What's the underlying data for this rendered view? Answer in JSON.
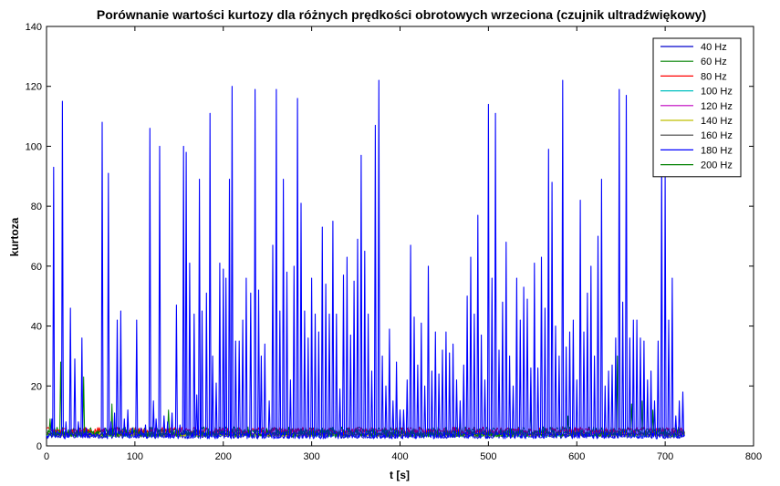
{
  "chart_data": {
    "type": "line",
    "title": "Porównanie wartości kurtozy dla różnych prędkości obrotowych wrzeciona (czujnik ultradźwiękowy)",
    "xlabel": "t [s]",
    "ylabel": "kurtoza",
    "xlim": [
      0,
      800
    ],
    "ylim": [
      0,
      140
    ],
    "xticks": [
      0,
      100,
      200,
      300,
      400,
      500,
      600,
      700,
      800
    ],
    "yticks": [
      0,
      20,
      40,
      60,
      80,
      100,
      120,
      140
    ],
    "legend_position": "top-right",
    "grid": false,
    "x_range_data": [
      0,
      722
    ],
    "series": [
      {
        "name": "40 Hz",
        "color": "#0000cc",
        "baseline": 3.3,
        "noise": 0.8
      },
      {
        "name": "60 Hz",
        "color": "#008000",
        "baseline": 4.8,
        "noise": 1.6
      },
      {
        "name": "80 Hz",
        "color": "#ff0000",
        "baseline": 5.0,
        "noise": 1.2
      },
      {
        "name": "100 Hz",
        "color": "#00bfbf",
        "baseline": 3.6,
        "noise": 0.5
      },
      {
        "name": "120 Hz",
        "color": "#bf00bf",
        "baseline": 3.8,
        "noise": 0.5
      },
      {
        "name": "140 Hz",
        "color": "#bfbf00",
        "baseline": 3.7,
        "noise": 0.5
      },
      {
        "name": "160 Hz",
        "color": "#404040",
        "baseline": 3.9,
        "noise": 0.6
      },
      {
        "name": "180 Hz",
        "color": "#0000ff",
        "baseline": 3.4,
        "noise": 1.0,
        "peaks": [
          [
            6,
            9
          ],
          [
            8,
            93
          ],
          [
            12,
            5
          ],
          [
            18,
            115
          ],
          [
            22,
            8
          ],
          [
            27,
            46
          ],
          [
            32,
            29
          ],
          [
            36,
            8
          ],
          [
            40,
            36
          ],
          [
            45,
            6
          ],
          [
            63,
            108
          ],
          [
            66,
            6
          ],
          [
            70,
            91
          ],
          [
            73,
            8
          ],
          [
            77,
            11
          ],
          [
            80,
            42
          ],
          [
            84,
            45
          ],
          [
            88,
            9
          ],
          [
            92,
            12
          ],
          [
            97,
            6
          ],
          [
            102,
            42
          ],
          [
            107,
            6
          ],
          [
            112,
            7
          ],
          [
            117,
            106
          ],
          [
            121,
            15
          ],
          [
            124,
            9
          ],
          [
            128,
            100
          ],
          [
            133,
            10
          ],
          [
            137,
            8
          ],
          [
            142,
            11
          ],
          [
            147,
            47
          ],
          [
            151,
            7
          ],
          [
            155,
            100
          ],
          [
            158,
            98
          ],
          [
            162,
            61
          ],
          [
            167,
            44
          ],
          [
            170,
            17
          ],
          [
            173,
            89
          ],
          [
            176,
            45
          ],
          [
            181,
            51
          ],
          [
            185,
            111
          ],
          [
            188,
            30
          ],
          [
            192,
            21
          ],
          [
            196,
            61
          ],
          [
            200,
            59
          ],
          [
            203,
            56
          ],
          [
            207,
            89
          ],
          [
            210,
            120
          ],
          [
            214,
            35
          ],
          [
            218,
            35
          ],
          [
            222,
            42
          ],
          [
            226,
            56
          ],
          [
            231,
            51
          ],
          [
            236,
            119
          ],
          [
            240,
            52
          ],
          [
            243,
            30
          ],
          [
            247,
            34
          ],
          [
            252,
            15
          ],
          [
            256,
            67
          ],
          [
            260,
            119
          ],
          [
            264,
            45
          ],
          [
            268,
            89
          ],
          [
            272,
            58
          ],
          [
            276,
            22
          ],
          [
            280,
            60
          ],
          [
            284,
            116
          ],
          [
            288,
            81
          ],
          [
            292,
            45
          ],
          [
            296,
            36
          ],
          [
            300,
            56
          ],
          [
            304,
            44
          ],
          [
            308,
            38
          ],
          [
            312,
            73
          ],
          [
            316,
            54
          ],
          [
            320,
            44
          ],
          [
            324,
            75
          ],
          [
            328,
            44
          ],
          [
            332,
            19
          ],
          [
            336,
            57
          ],
          [
            340,
            63
          ],
          [
            344,
            37
          ],
          [
            348,
            55
          ],
          [
            352,
            69
          ],
          [
            356,
            97
          ],
          [
            360,
            65
          ],
          [
            364,
            44
          ],
          [
            368,
            25
          ],
          [
            372,
            107
          ],
          [
            376,
            122
          ],
          [
            380,
            30
          ],
          [
            384,
            20
          ],
          [
            388,
            39
          ],
          [
            392,
            15
          ],
          [
            396,
            28
          ],
          [
            400,
            12
          ],
          [
            404,
            12
          ],
          [
            408,
            22
          ],
          [
            412,
            67
          ],
          [
            416,
            43
          ],
          [
            420,
            27
          ],
          [
            424,
            41
          ],
          [
            428,
            20
          ],
          [
            432,
            60
          ],
          [
            436,
            25
          ],
          [
            440,
            38
          ],
          [
            444,
            24
          ],
          [
            448,
            32
          ],
          [
            452,
            38
          ],
          [
            456,
            31
          ],
          [
            460,
            34
          ],
          [
            464,
            22
          ],
          [
            468,
            15
          ],
          [
            472,
            27
          ],
          [
            476,
            50
          ],
          [
            480,
            63
          ],
          [
            484,
            44
          ],
          [
            488,
            77
          ],
          [
            492,
            37
          ],
          [
            496,
            22
          ],
          [
            500,
            114
          ],
          [
            504,
            56
          ],
          [
            508,
            111
          ],
          [
            512,
            32
          ],
          [
            516,
            48
          ],
          [
            520,
            68
          ],
          [
            524,
            30
          ],
          [
            528,
            20
          ],
          [
            532,
            56
          ],
          [
            536,
            42
          ],
          [
            540,
            53
          ],
          [
            544,
            49
          ],
          [
            548,
            26
          ],
          [
            552,
            61
          ],
          [
            556,
            26
          ],
          [
            560,
            63
          ],
          [
            564,
            46
          ],
          [
            568,
            99
          ],
          [
            572,
            88
          ],
          [
            576,
            40
          ],
          [
            580,
            30
          ],
          [
            584,
            122
          ],
          [
            588,
            33
          ],
          [
            592,
            38
          ],
          [
            596,
            42
          ],
          [
            600,
            22
          ],
          [
            604,
            82
          ],
          [
            608,
            38
          ],
          [
            612,
            51
          ],
          [
            616,
            60
          ],
          [
            620,
            30
          ],
          [
            624,
            70
          ],
          [
            628,
            89
          ],
          [
            632,
            20
          ],
          [
            636,
            25
          ],
          [
            640,
            27
          ],
          [
            644,
            36
          ],
          [
            648,
            119
          ],
          [
            652,
            48
          ],
          [
            656,
            117
          ],
          [
            660,
            36
          ],
          [
            664,
            42
          ],
          [
            668,
            42
          ],
          [
            672,
            36
          ],
          [
            676,
            35
          ],
          [
            680,
            22
          ],
          [
            684,
            25
          ],
          [
            688,
            15
          ],
          [
            692,
            35
          ],
          [
            696,
            97
          ],
          [
            700,
            90
          ],
          [
            704,
            42
          ],
          [
            708,
            56
          ],
          [
            712,
            10
          ],
          [
            716,
            15
          ],
          [
            720,
            18
          ]
        ]
      },
      {
        "name": "200 Hz",
        "color": "#008000",
        "baseline": 4.2,
        "noise": 1.2,
        "peaks": [
          [
            4,
            9
          ],
          [
            16,
            28
          ],
          [
            42,
            23
          ],
          [
            74,
            14
          ],
          [
            138,
            12
          ],
          [
            468,
            10
          ],
          [
            548,
            13
          ],
          [
            590,
            10
          ],
          [
            646,
            30
          ],
          [
            662,
            14
          ],
          [
            674,
            15
          ],
          [
            686,
            12
          ]
        ]
      }
    ]
  }
}
